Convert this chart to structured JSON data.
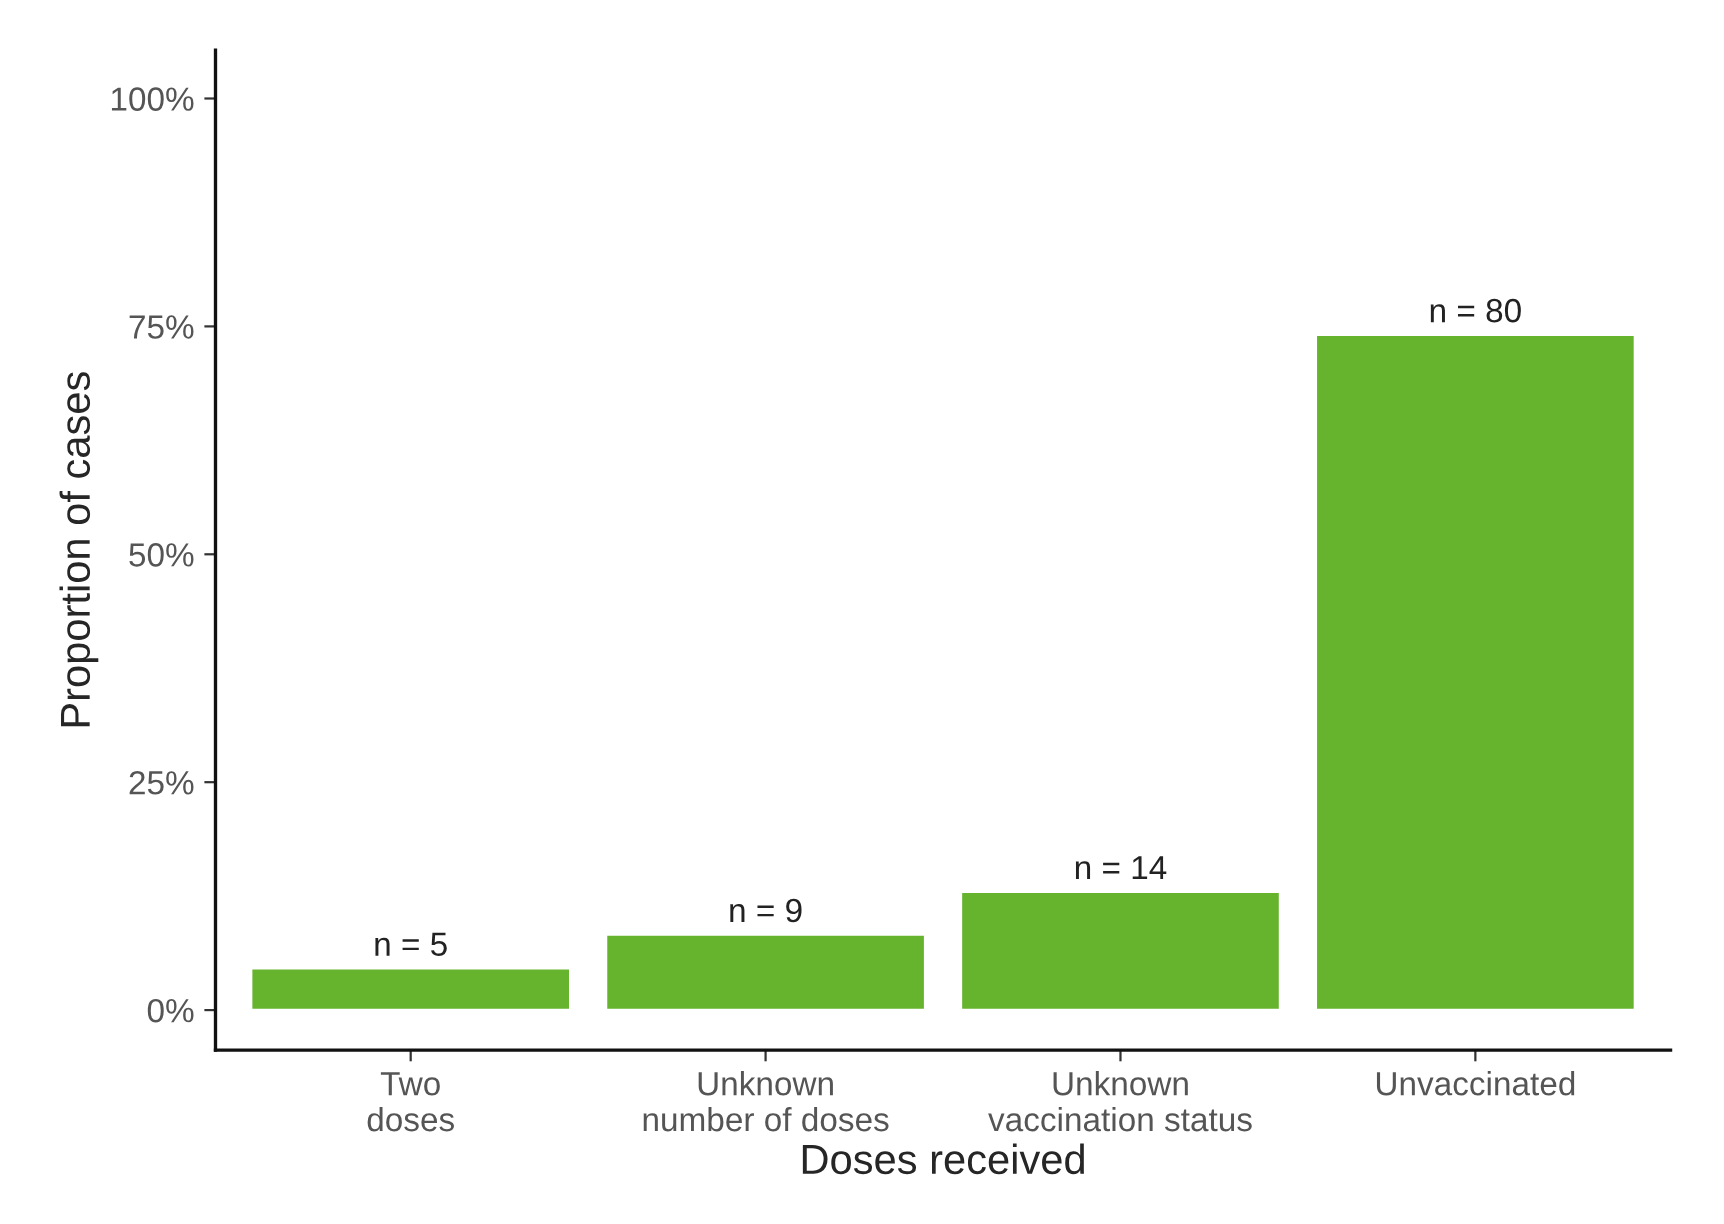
{
  "chart_data": {
    "type": "bar",
    "xlabel": "Doses received",
    "ylabel": "Proportion of cases",
    "categories": [
      "Two\ndoses",
      "Unknown\nnumber of doses",
      "Unknown\nvaccination status",
      "Unvaccinated"
    ],
    "values": [
      4.6,
      8.3,
      13.0,
      74.1
    ],
    "annotations": [
      {
        "text": "n = 5",
        "x": "Two\ndoses",
        "y": 4.6
      },
      {
        "text": "n = 9",
        "x": "Unknown\nnumber of doses",
        "y": 8.3
      },
      {
        "text": "n = 14",
        "x": "Unknown\nvaccination status",
        "y": 13.0
      },
      {
        "text": "n = 80",
        "x": "Unvaccinated",
        "y": 74.1
      }
    ],
    "color": "#66b32e",
    "ylim": [
      -4.4,
      105.3
    ],
    "yticks": [
      {
        "value": 0,
        "label": "0%"
      },
      {
        "value": 25,
        "label": "25%"
      },
      {
        "value": 50,
        "label": "50%"
      },
      {
        "value": 75,
        "label": "75%"
      },
      {
        "value": 100,
        "label": "100%"
      }
    ],
    "grid": false,
    "legend": false
  }
}
